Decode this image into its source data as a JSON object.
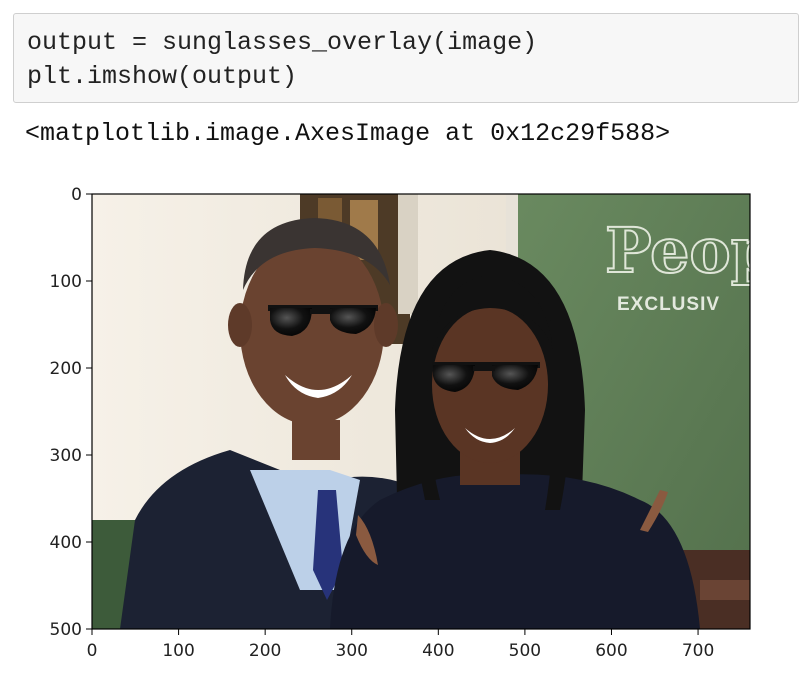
{
  "cell": {
    "code_lines": [
      "output = sunglasses_overlay(image)",
      "plt.imshow(output)"
    ]
  },
  "output": {
    "repr": "<matplotlib.image.AxesImage at 0x12c29f588>"
  },
  "image": {
    "description_icons": [
      "portrait-photo-image",
      "sunglasses-icon"
    ],
    "watermark_text": "People",
    "badge_text": "EXCLUSIV",
    "colors": {
      "green_backdrop": "#5e7b55",
      "suit": "#1c2233",
      "shirt": "#bcd0e8",
      "tie": "#27337a",
      "dress": "#161a2b",
      "skin_left": "#6a4330",
      "skin_right": "#5a3524",
      "hair": "#121212",
      "wall": "#f1ece3"
    }
  },
  "chart_data": {
    "type": "image",
    "xlim": [
      0,
      760
    ],
    "ylim": [
      500,
      0
    ],
    "xticks": [
      0,
      100,
      200,
      300,
      400,
      500,
      600,
      700
    ],
    "yticks": [
      0,
      100,
      200,
      300,
      400,
      500
    ],
    "xtick_labels": [
      "0",
      "100",
      "200",
      "300",
      "400",
      "500",
      "600",
      "700"
    ],
    "ytick_labels": [
      "0",
      "100",
      "200",
      "300",
      "400",
      "500"
    ],
    "grid": false
  }
}
